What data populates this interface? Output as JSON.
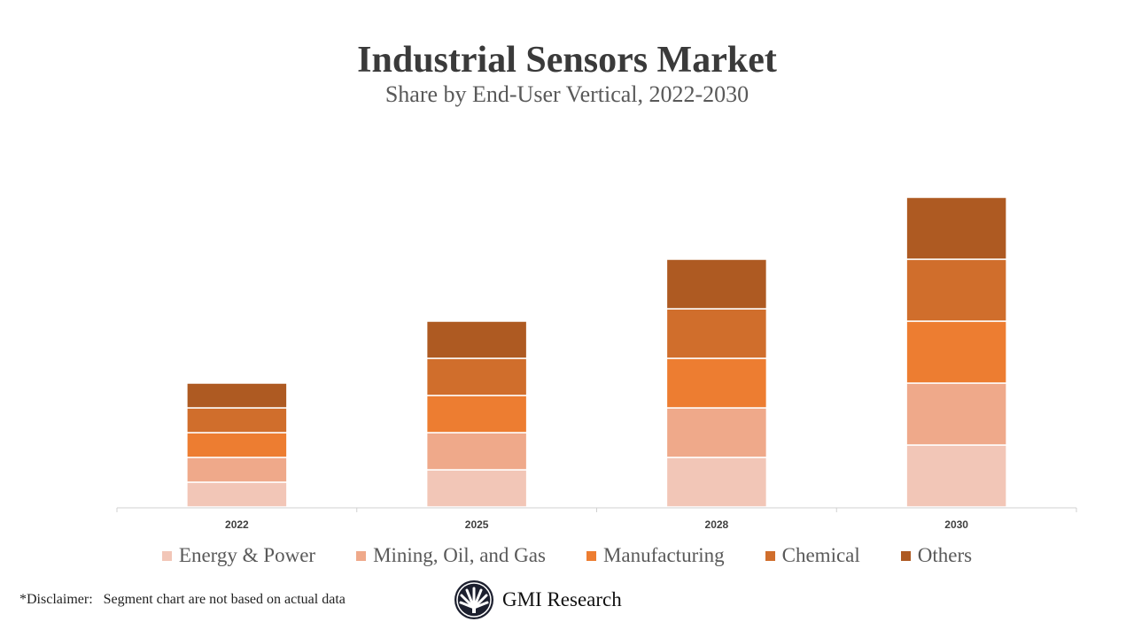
{
  "chart_data": {
    "type": "bar",
    "stacked": true,
    "title": "Industrial Sensors Market",
    "subtitle": "Share by End-User Vertical, 2022-2030",
    "categories": [
      "2022",
      "2025",
      "2028",
      "2030"
    ],
    "series": [
      {
        "name": "Energy & Power",
        "color": "#F2C6B7",
        "values": [
          10,
          15,
          20,
          25
        ]
      },
      {
        "name": "Mining, Oil, and Gas",
        "color": "#EFA98A",
        "values": [
          10,
          15,
          20,
          25
        ]
      },
      {
        "name": "Manufacturing",
        "color": "#ED7D31",
        "values": [
          10,
          15,
          20,
          25
        ]
      },
      {
        "name": "Chemical",
        "color": "#D06E2C",
        "values": [
          10,
          15,
          20,
          25
        ]
      },
      {
        "name": "Others",
        "color": "#AE5A22",
        "values": [
          10,
          15,
          20,
          25
        ]
      }
    ],
    "ylim": [
      0,
      125
    ],
    "y_axis_shown": false,
    "grid": false,
    "legend_position": "bottom"
  },
  "footer": {
    "disclaimer": "*Disclaimer:   Segment chart are not based on actual data",
    "logo_text": "GMI Research"
  }
}
